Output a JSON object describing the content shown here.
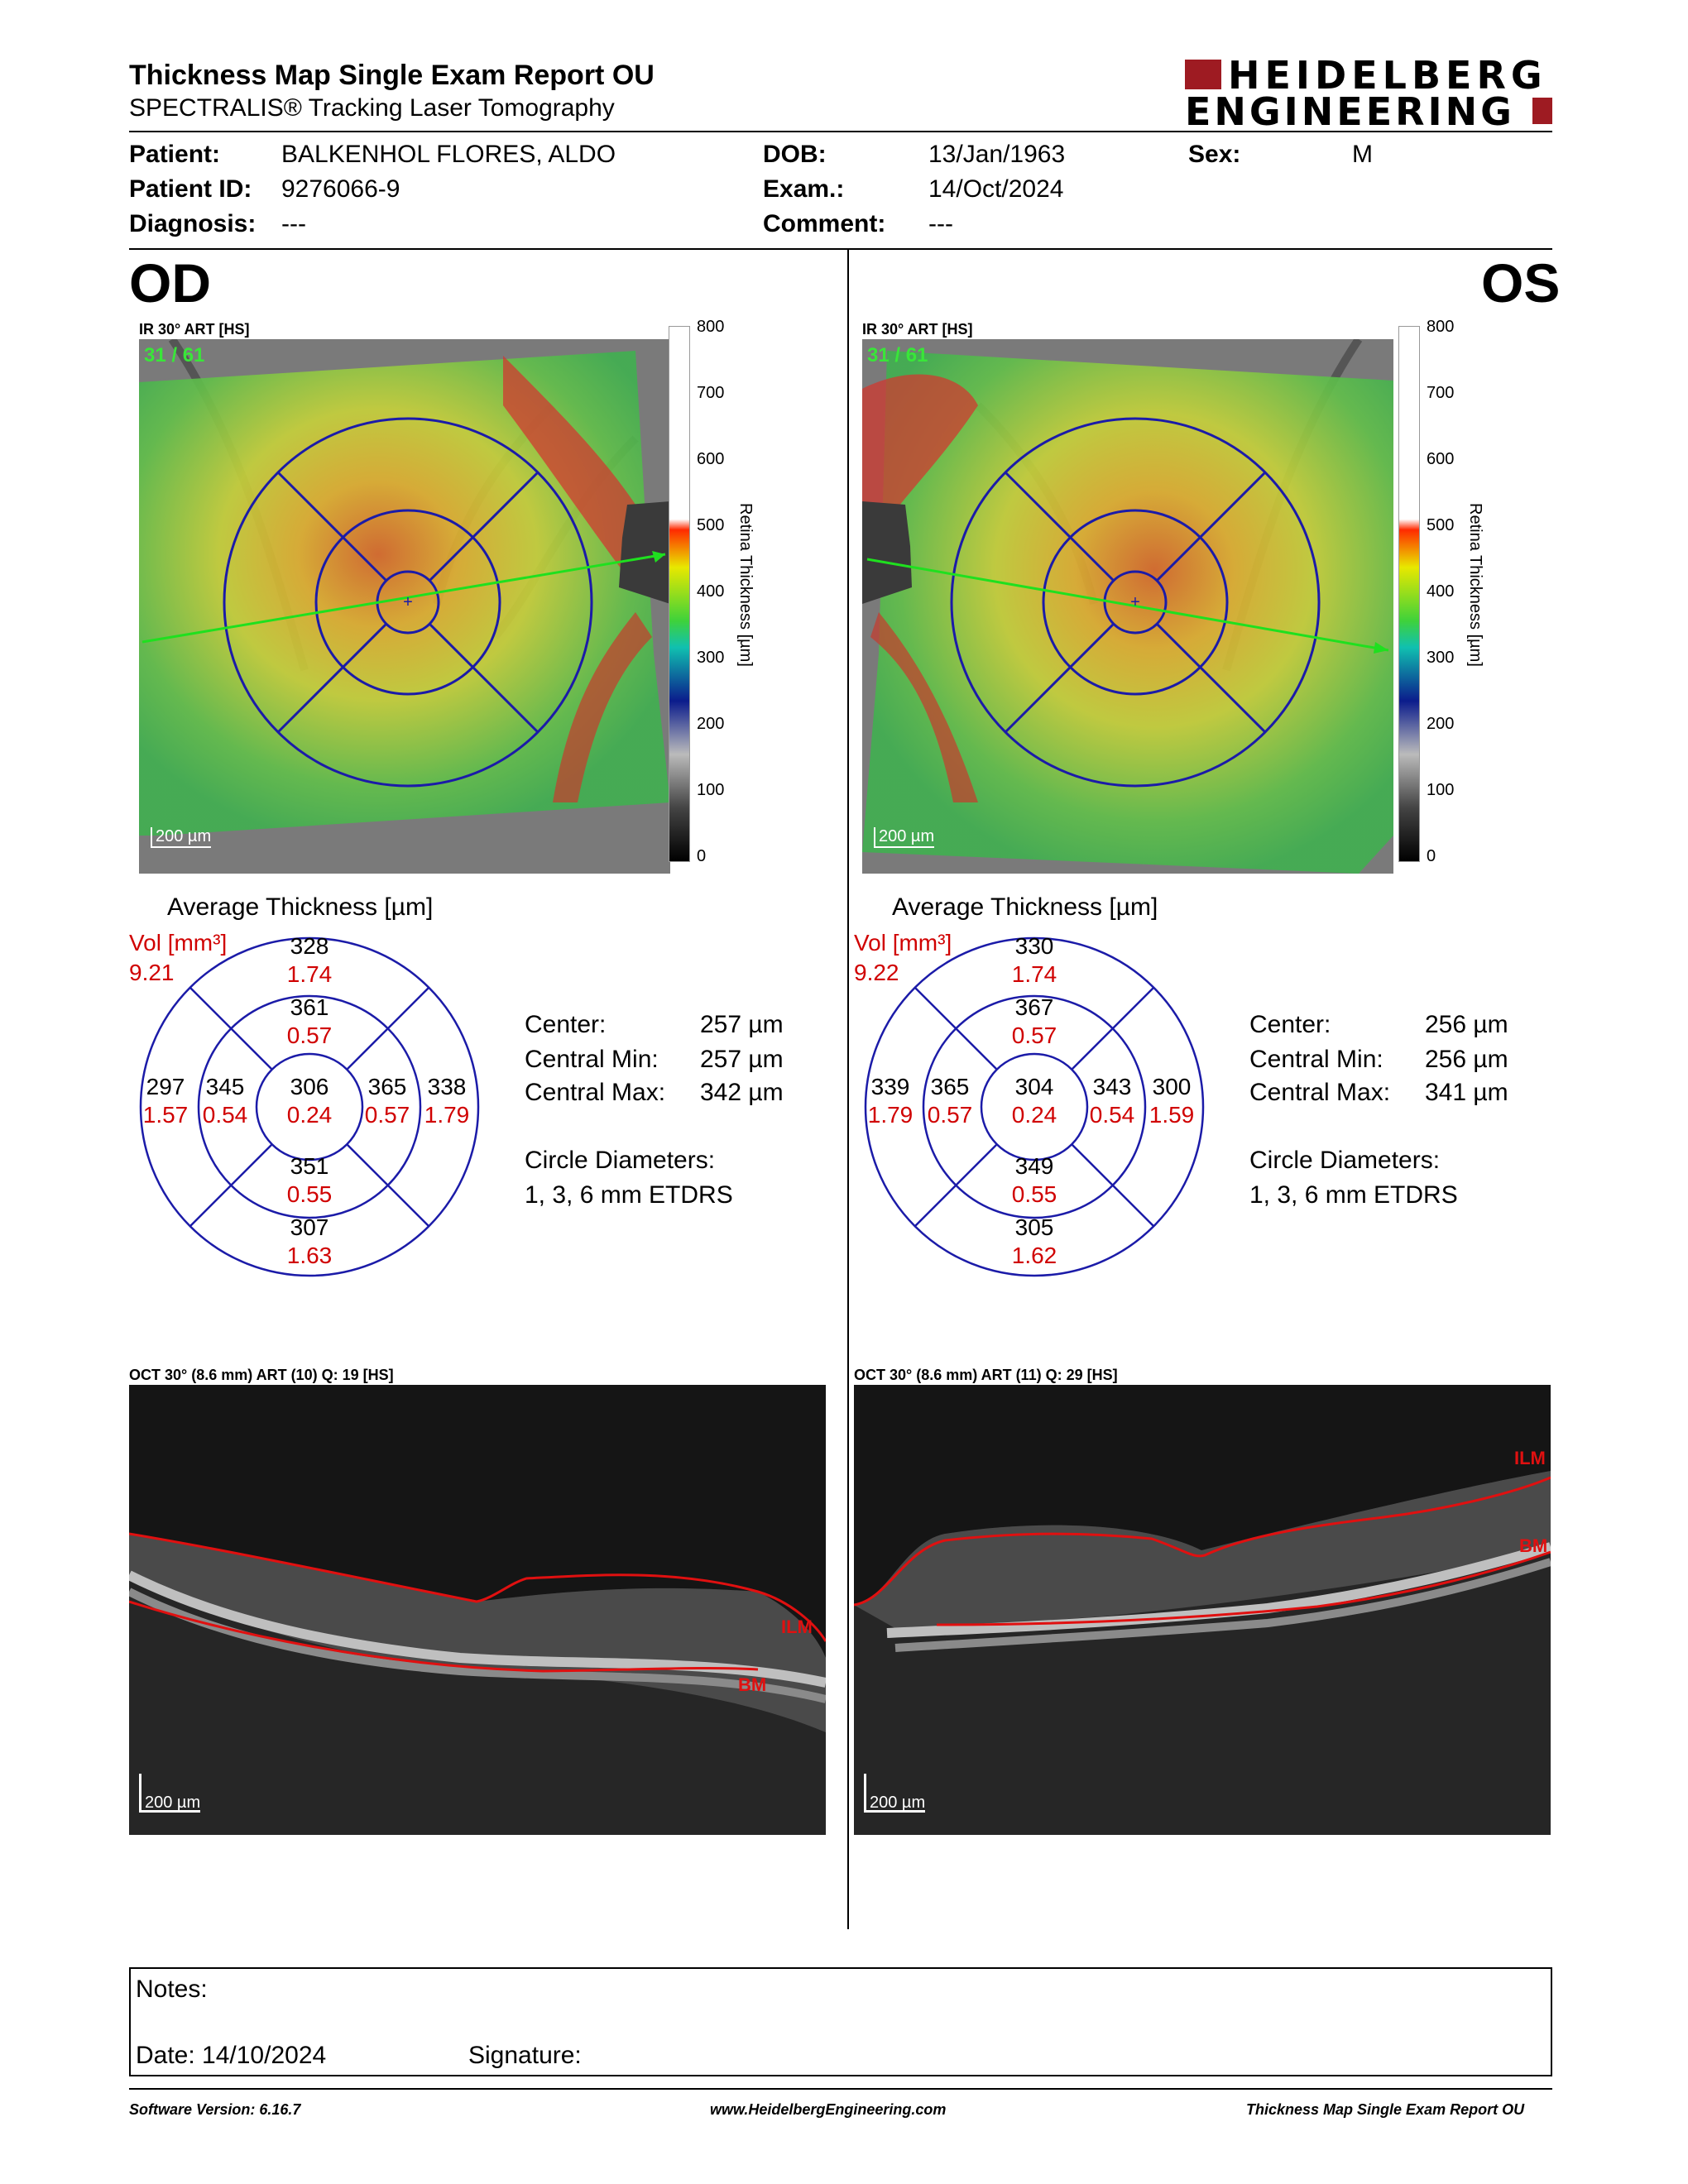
{
  "header": {
    "title": "Thickness Map Single Exam Report OU",
    "subtitle": "SPECTRALIS® Tracking Laser Tomography",
    "logo_line1": "HEIDELBERG",
    "logo_line2": "ENGINEERING"
  },
  "patient": {
    "patient_label": "Patient:",
    "patient_value": "BALKENHOL FLORES, ALDO",
    "id_label": "Patient ID:",
    "id_value": "9276066-9",
    "diagnosis_label": "Diagnosis:",
    "diagnosis_value": "---",
    "dob_label": "DOB:",
    "dob_value": "13/Jan/1963",
    "exam_label": "Exam.:",
    "exam_value": "14/Oct/2024",
    "comment_label": "Comment:",
    "comment_value": "---",
    "sex_label": "Sex:",
    "sex_value": "M"
  },
  "colors": {
    "ring_blue": "#1b1ba8",
    "red_values": "#d00000",
    "green_text": "#39e639",
    "logo_red": "#9e1b22"
  },
  "scale": {
    "ticks": [
      "800",
      "700",
      "600",
      "500",
      "400",
      "300",
      "200",
      "100",
      "0"
    ],
    "label": "Retina  Thickness [µm]"
  },
  "od": {
    "eye": "OD",
    "fundus_label": "IR 30° ART [HS]",
    "frame": "31 / 61",
    "scalebar": "200 µm",
    "avg_title": "Average Thickness [µm]",
    "vol_label": "Vol [mm³]",
    "vol_value": "9.21",
    "sectors": {
      "outer_sup": {
        "t": "328",
        "v": "1.74"
      },
      "inner_sup": {
        "t": "361",
        "v": "0.57"
      },
      "outer_left": {
        "t": "297",
        "v": "1.57"
      },
      "inner_left": {
        "t": "345",
        "v": "0.54"
      },
      "center": {
        "t": "306",
        "v": "0.24"
      },
      "inner_right": {
        "t": "365",
        "v": "0.57"
      },
      "outer_right": {
        "t": "338",
        "v": "1.79"
      },
      "inner_inf": {
        "t": "351",
        "v": "0.55"
      },
      "outer_inf": {
        "t": "307",
        "v": "1.63"
      }
    },
    "stats": {
      "center_label": "Center:",
      "center_value": "257 µm",
      "min_label": "Central Min:",
      "min_value": "257 µm",
      "max_label": "Central Max:",
      "max_value": "342 µm",
      "diam_label": "Circle Diameters:",
      "diam_value": "1, 3, 6 mm ETDRS"
    },
    "oct_label": "OCT 30° (8.6 mm) ART (10) Q: 19 [HS]",
    "oct_scalebar": "200 µm",
    "ilm": "ILM",
    "bm": "BM"
  },
  "os": {
    "eye": "OS",
    "fundus_label": "IR 30° ART [HS]",
    "frame": "31 / 61",
    "scalebar": "200 µm",
    "avg_title": "Average Thickness [µm]",
    "vol_label": "Vol [mm³]",
    "vol_value": "9.22",
    "sectors": {
      "outer_sup": {
        "t": "330",
        "v": "1.74"
      },
      "inner_sup": {
        "t": "367",
        "v": "0.57"
      },
      "outer_left": {
        "t": "339",
        "v": "1.79"
      },
      "inner_left": {
        "t": "365",
        "v": "0.57"
      },
      "center": {
        "t": "304",
        "v": "0.24"
      },
      "inner_right": {
        "t": "343",
        "v": "0.54"
      },
      "outer_right": {
        "t": "300",
        "v": "1.59"
      },
      "inner_inf": {
        "t": "349",
        "v": "0.55"
      },
      "outer_inf": {
        "t": "305",
        "v": "1.62"
      }
    },
    "stats": {
      "center_label": "Center:",
      "center_value": "256 µm",
      "min_label": "Central Min:",
      "min_value": "256 µm",
      "max_label": "Central Max:",
      "max_value": "341 µm",
      "diam_label": "Circle Diameters:",
      "diam_value": "1, 3, 6 mm ETDRS"
    },
    "oct_label": "OCT 30° (8.6 mm) ART (11) Q: 29 [HS]",
    "oct_scalebar": "200 µm",
    "ilm": "ILM",
    "bm": "BM"
  },
  "notes": {
    "notes_label": "Notes:",
    "date_label": "Date: 14/10/2024",
    "signature_label": "Signature:"
  },
  "footer": {
    "software": "Software Version: 6.16.7",
    "website": "www.HeidelbergEngineering.com",
    "report": "Thickness Map Single Exam Report OU"
  }
}
